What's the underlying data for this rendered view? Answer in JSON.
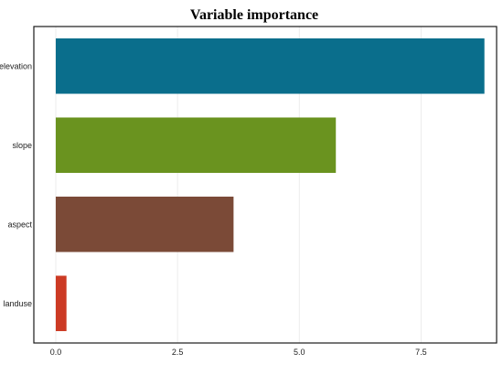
{
  "chart_data": {
    "type": "bar",
    "orientation": "horizontal",
    "title": "Variable importance",
    "xlabel": "",
    "ylabel": "",
    "categories": [
      "elevation",
      "slope",
      "aspect",
      "landuse"
    ],
    "values": [
      8.8,
      5.75,
      3.65,
      0.22
    ],
    "colors": [
      "#0a6e8c",
      "#6a931f",
      "#7b4a37",
      "#cc3a24"
    ],
    "xlim": [
      -0.45,
      9.05
    ],
    "xticks": [
      0.0,
      2.5,
      5.0,
      7.5
    ],
    "xtick_labels": [
      "0.0",
      "2.5",
      "5.0",
      "7.5"
    ],
    "grid": "vertical",
    "legend": "none"
  }
}
